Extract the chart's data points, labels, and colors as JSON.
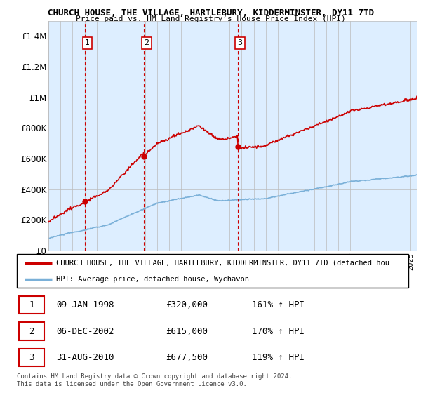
{
  "title1": "CHURCH HOUSE, THE VILLAGE, HARTLEBURY, KIDDERMINSTER, DY11 7TD",
  "title2": "Price paid vs. HM Land Registry’s House Price Index (HPI)",
  "xlim_start": 1995.0,
  "xlim_end": 2025.5,
  "ylim_min": 0,
  "ylim_max": 1500000,
  "yticks": [
    0,
    200000,
    400000,
    600000,
    800000,
    1000000,
    1200000,
    1400000
  ],
  "ytick_labels": [
    "£0",
    "£200K",
    "£400K",
    "£600K",
    "£800K",
    "£1M",
    "£1.2M",
    "£1.4M"
  ],
  "sales": [
    {
      "date_num": 1998.03,
      "price": 320000,
      "label": "1"
    },
    {
      "date_num": 2002.92,
      "price": 615000,
      "label": "2"
    },
    {
      "date_num": 2010.66,
      "price": 677500,
      "label": "3"
    }
  ],
  "legend_line1": "CHURCH HOUSE, THE VILLAGE, HARTLEBURY, KIDDERMINSTER, DY11 7TD (detached hou",
  "legend_line2": "HPI: Average price, detached house, Wychavon",
  "table_rows": [
    {
      "num": "1",
      "date": "09-JAN-1998",
      "price": "£320,000",
      "hpi": "161% ↑ HPI"
    },
    {
      "num": "2",
      "date": "06-DEC-2002",
      "price": "£615,000",
      "hpi": "170% ↑ HPI"
    },
    {
      "num": "3",
      "date": "31-AUG-2010",
      "price": "£677,500",
      "hpi": "119% ↑ HPI"
    }
  ],
  "footer": "Contains HM Land Registry data © Crown copyright and database right 2024.\nThis data is licensed under the Open Government Licence v3.0.",
  "sale_line_color": "#cc0000",
  "hpi_line_color": "#7ab0d8",
  "property_line_color": "#cc0000",
  "grid_color": "#bbbbbb",
  "chart_bg_color": "#ddeeff",
  "background_color": "#ffffff",
  "label_box_color": "#cc0000"
}
